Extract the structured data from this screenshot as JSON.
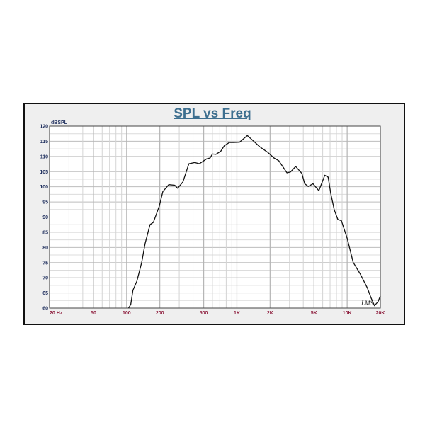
{
  "chart_data": {
    "type": "line",
    "title": "SPL vs Freq",
    "ylabel": "dBSPL",
    "xlabel": "",
    "xscale": "log",
    "xlim": [
      20,
      20000
    ],
    "ylim": [
      60,
      120
    ],
    "grid": true,
    "yticks": [
      60,
      65,
      70,
      75,
      80,
      85,
      90,
      95,
      100,
      105,
      110,
      115,
      120
    ],
    "xticks": [
      {
        "value": 20,
        "label": "20  Hz"
      },
      {
        "value": 50,
        "label": "50"
      },
      {
        "value": 100,
        "label": "100"
      },
      {
        "value": 200,
        "label": "200"
      },
      {
        "value": 500,
        "label": "500"
      },
      {
        "value": 1000,
        "label": "1K"
      },
      {
        "value": 2000,
        "label": "2K"
      },
      {
        "value": 5000,
        "label": "5K"
      },
      {
        "value": 10000,
        "label": "10K"
      },
      {
        "value": 20000,
        "label": "20K"
      }
    ],
    "series": [
      {
        "color": "#111111",
        "x": [
          104,
          109,
          114,
          124,
          137,
          147,
          163,
          175,
          198,
          213,
          241,
          273,
          290,
          324,
          367,
          415,
          457,
          531,
          571,
          600,
          646,
          713,
          768,
          855,
          935,
          1057,
          1245,
          1610,
          1914,
          2167,
          2393,
          2845,
          3064,
          3415,
          3882,
          4121,
          4440,
          4900,
          5540,
          6270,
          6720,
          7100,
          7640,
          8230,
          8870,
          10020,
          11340,
          13150,
          15250,
          16420,
          17680,
          19050,
          20000
        ],
        "y": [
          60,
          61.2,
          65.9,
          68.9,
          75.1,
          81.3,
          87.5,
          88.3,
          93.7,
          98.4,
          100.7,
          100.5,
          99.5,
          101.6,
          107.6,
          108,
          107.6,
          109.2,
          109.5,
          110.8,
          110.7,
          111.7,
          113.5,
          114.6,
          114.6,
          114.7,
          116.9,
          113.2,
          111.3,
          109.5,
          108.6,
          104.6,
          104.9,
          106.7,
          104.4,
          101,
          100.1,
          101,
          98.7,
          103.8,
          103.2,
          97.8,
          92.4,
          89.2,
          88.8,
          82.9,
          75.1,
          71.2,
          66.6,
          63.5,
          60.8,
          62.1,
          64
        ]
      }
    ]
  },
  "logo": "LMS"
}
